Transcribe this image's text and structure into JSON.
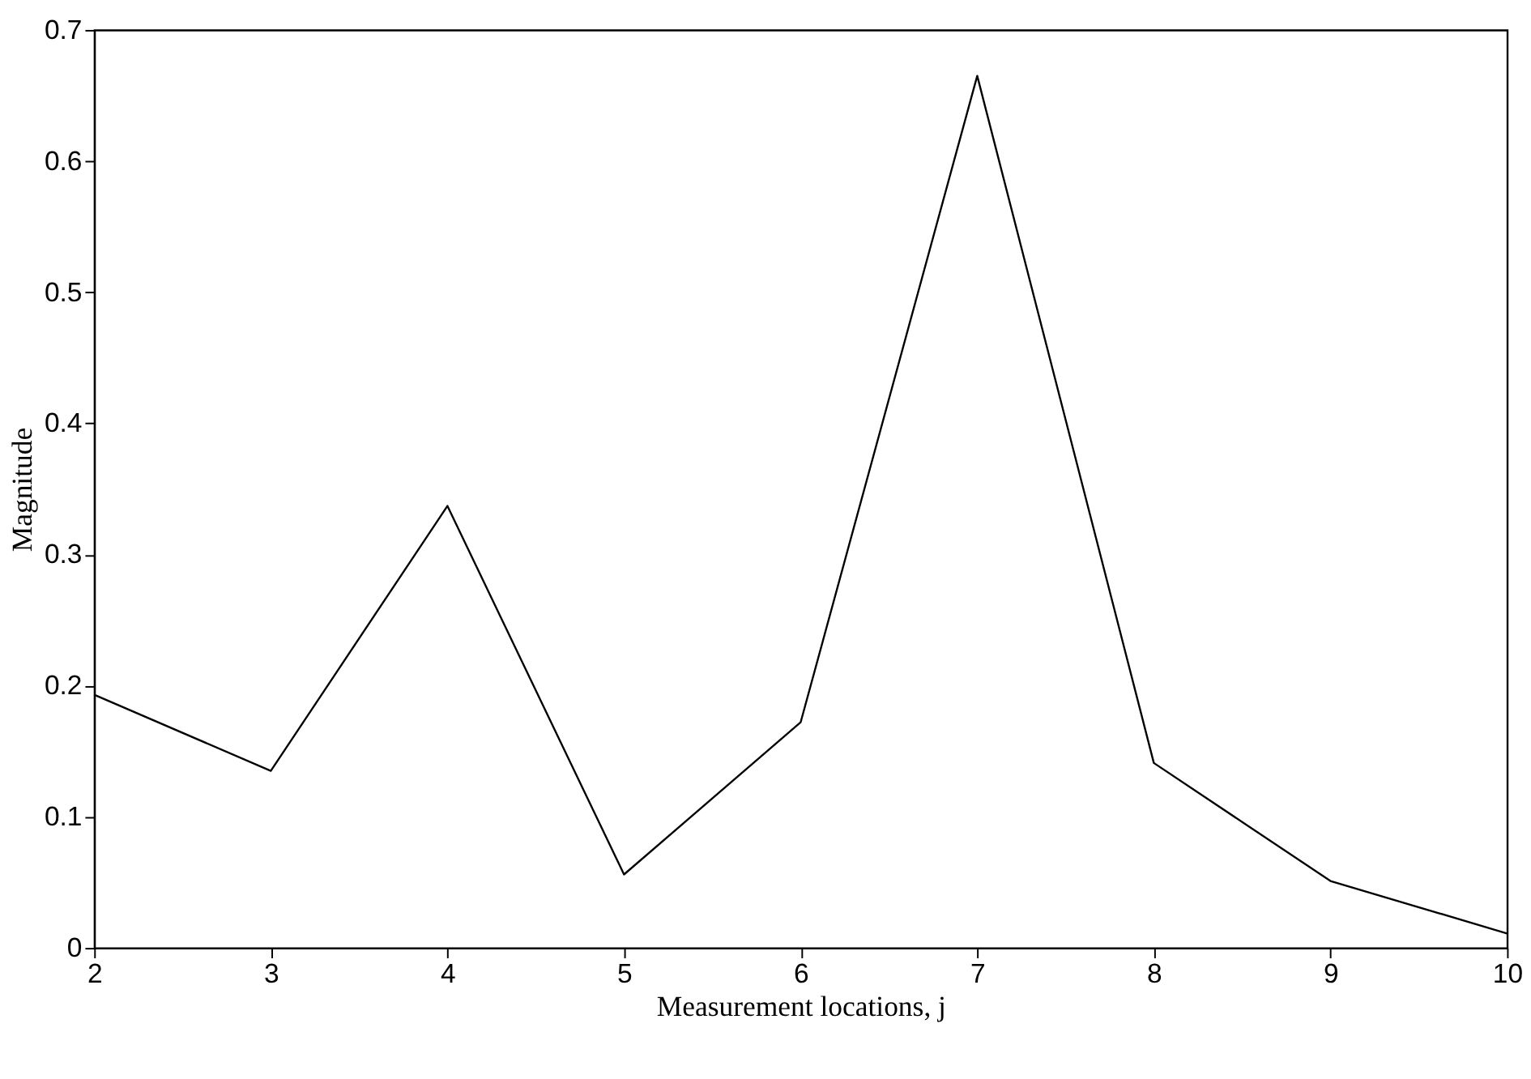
{
  "chart_data": {
    "type": "line",
    "xlabel": "Measurement locations, j",
    "ylabel": "Magnitude",
    "x": [
      2,
      3,
      4,
      5,
      6,
      7,
      8,
      9,
      10
    ],
    "series": [
      {
        "color": "#000000",
        "values": [
          0.193,
          0.135,
          0.337,
          0.056,
          0.172,
          0.665,
          0.141,
          0.051,
          0.011
        ]
      }
    ],
    "xlim": [
      2,
      10
    ],
    "xticks": [
      2,
      3,
      4,
      5,
      6,
      7,
      8,
      9,
      10
    ],
    "ylim": [
      0,
      0.7
    ],
    "yticks": [
      0,
      0.1,
      0.2,
      0.3,
      0.4,
      0.5,
      0.6,
      0.7
    ],
    "grid": false,
    "legend": false,
    "marker": "none",
    "line_style": "solid"
  }
}
